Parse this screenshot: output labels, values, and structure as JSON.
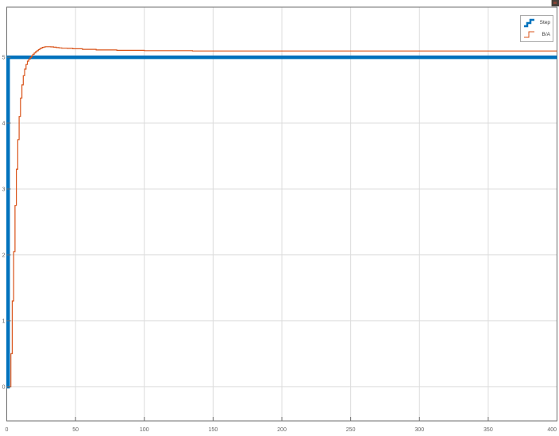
{
  "window": {
    "background": "#ffffff",
    "corner_icon": "figure-menu-icon"
  },
  "legend": {
    "position": "northeast",
    "items": [
      {
        "label": "Step",
        "color": "#0072BD",
        "swatch": "step-line-glyph",
        "line_width": 2.5
      },
      {
        "label": "B/A",
        "color": "#D95319",
        "swatch": "step-line-glyph",
        "line_width": 1
      }
    ]
  },
  "colors": {
    "step_line": "#0072BD",
    "response_line": "#D95319",
    "grid": "#dcdcdc",
    "axes_border": "#6e6e6e",
    "tick_label": "#636363"
  },
  "chart_data": {
    "type": "line",
    "title": "",
    "xlabel": "",
    "ylabel": "",
    "xlim": [
      0,
      400
    ],
    "ylim": [
      -0.52,
      5.76
    ],
    "x_ticks": [
      0,
      50,
      100,
      150,
      200,
      250,
      300,
      350,
      400
    ],
    "y_ticks": [
      0,
      1,
      2,
      3,
      4,
      5
    ],
    "grid": true,
    "legend_position": "northeast",
    "series": [
      {
        "name": "Step",
        "color": "#0072BD",
        "width": 4.5,
        "mode": "linear",
        "points": [
          [
            0,
            0
          ],
          [
            1,
            0
          ],
          [
            1,
            5
          ],
          [
            400,
            5
          ]
        ]
      },
      {
        "name": "B/A",
        "color": "#D95319",
        "width": 1.2,
        "mode": "stairs",
        "points": [
          [
            1,
            0
          ],
          [
            2,
            0
          ],
          [
            3,
            0.5
          ],
          [
            4,
            1.3
          ],
          [
            5,
            2.05
          ],
          [
            6,
            2.75
          ],
          [
            7,
            3.3
          ],
          [
            8,
            3.75
          ],
          [
            9,
            4.1
          ],
          [
            10,
            4.38
          ],
          [
            11,
            4.58
          ],
          [
            12,
            4.72
          ],
          [
            13,
            4.82
          ],
          [
            14,
            4.89
          ],
          [
            15,
            4.94
          ],
          [
            16,
            4.97
          ],
          [
            17,
            4.995
          ],
          [
            18,
            5.02
          ],
          [
            19,
            5.045
          ],
          [
            20,
            5.065
          ],
          [
            21,
            5.085
          ],
          [
            22,
            5.1
          ],
          [
            23,
            5.115
          ],
          [
            24,
            5.13
          ],
          [
            25,
            5.14
          ],
          [
            26,
            5.15
          ],
          [
            27,
            5.155
          ],
          [
            28,
            5.16
          ],
          [
            30,
            5.16
          ],
          [
            32,
            5.157
          ],
          [
            34,
            5.152
          ],
          [
            36,
            5.147
          ],
          [
            38,
            5.142
          ],
          [
            40,
            5.137
          ],
          [
            44,
            5.135
          ],
          [
            48,
            5.128
          ],
          [
            55,
            5.12
          ],
          [
            65,
            5.11
          ],
          [
            80,
            5.104
          ],
          [
            100,
            5.1
          ],
          [
            135,
            5.095
          ],
          [
            400,
            5.095
          ]
        ]
      }
    ]
  }
}
